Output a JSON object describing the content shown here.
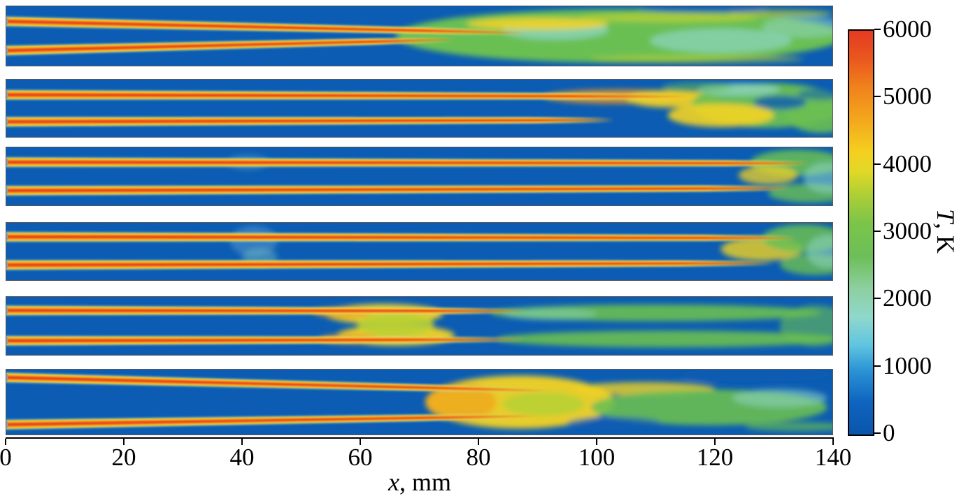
{
  "figure": {
    "xlabel_var": "x",
    "xlabel_rest": ", mm",
    "cbar_var": "T",
    "cbar_rest": ", K"
  },
  "chart_data": {
    "type": "heatmap",
    "title": "",
    "subtitle": "",
    "xlabel": "x, mm",
    "xlim": [
      0,
      140
    ],
    "x_ticks": [
      0,
      20,
      40,
      60,
      80,
      100,
      120,
      140
    ],
    "n_panels": 6,
    "colorbar": {
      "label": "T, K",
      "range_K": [
        0,
        6000
      ],
      "ticks": [
        6000,
        5000,
        4000,
        3000,
        2000,
        1000,
        0
      ],
      "colormap": "jet",
      "stops": [
        {
          "pos": 0,
          "color": "#0b55ab"
        },
        {
          "pos": 0.08,
          "color": "#0e64bf"
        },
        {
          "pos": 0.16,
          "color": "#2b94d6"
        },
        {
          "pos": 0.22,
          "color": "#5fc4e0"
        },
        {
          "pos": 0.29,
          "color": "#8fd8cc"
        },
        {
          "pos": 0.36,
          "color": "#8ed0a2"
        },
        {
          "pos": 0.44,
          "color": "#6cbf58"
        },
        {
          "pos": 0.52,
          "color": "#79c44a"
        },
        {
          "pos": 0.59,
          "color": "#abce36"
        },
        {
          "pos": 0.65,
          "color": "#e0d827"
        },
        {
          "pos": 0.7,
          "color": "#f5cf20"
        },
        {
          "pos": 0.78,
          "color": "#f4a71d"
        },
        {
          "pos": 0.86,
          "color": "#f0821c"
        },
        {
          "pos": 0.93,
          "color": "#ea571e"
        },
        {
          "pos": 1,
          "color": "#e53a22"
        }
      ]
    },
    "palette": {
      "background": "#0b5cb2",
      "streak_core": "#e8401f",
      "streak_mid": "#f5901d",
      "streak_glow": "#f6d321",
      "green": "#6abf52",
      "yellow_green": "#b8d034",
      "teal": "#8fd6c4",
      "yellow": "#f3d322",
      "orange": "#f29a1c",
      "light_blue": "#5d9bcf",
      "wall_gray": "#999999",
      "axis_black": "#000000"
    },
    "background_temperature_K": 300,
    "streak_temperature_K": 4800,
    "combustion_temperature_K": 2800,
    "panels": [
      {
        "name": "panel-1",
        "combustion_onset_mm": 67,
        "streaks": [
          {
            "y0": 0.26,
            "y1": 0.45,
            "x_fade": 70,
            "x_end": 88
          },
          {
            "y0": 0.74,
            "y1": 0.56,
            "x_fade": 62,
            "x_end": 76
          }
        ],
        "blobs": [
          {
            "x": 104,
            "y": 0.5,
            "rx": 38,
            "ry": 0.44,
            "color": "green",
            "opacity": 1
          },
          {
            "x": 78,
            "y": 0.5,
            "rx": 8,
            "ry": 0.3,
            "color": "green",
            "opacity": 0.8
          },
          {
            "x": 93,
            "y": 0.4,
            "rx": 9,
            "ry": 0.16,
            "color": "teal",
            "opacity": 0.75
          },
          {
            "x": 121,
            "y": 0.58,
            "rx": 12,
            "ry": 0.2,
            "color": "teal",
            "opacity": 0.7
          },
          {
            "x": 135,
            "y": 0.35,
            "rx": 7,
            "ry": 0.18,
            "color": "teal",
            "opacity": 0.55
          },
          {
            "x": 90,
            "y": 0.3,
            "rx": 12,
            "ry": 0.1,
            "color": "yellow",
            "opacity": 0.85
          },
          {
            "x": 112,
            "y": 0.2,
            "rx": 15,
            "ry": 0.07,
            "color": "yellow_green",
            "opacity": 0.8
          },
          {
            "x": 131,
            "y": 0.13,
            "rx": 9,
            "ry": 0.06,
            "color": "yellow_green",
            "opacity": 0.7
          },
          {
            "x": 117,
            "y": 0.88,
            "rx": 18,
            "ry": 0.07,
            "color": "yellow_green",
            "opacity": 0.55
          },
          {
            "x": 118,
            "y": 0.05,
            "rx": 11,
            "ry": 0.06,
            "color": "background",
            "opacity": 0.95
          }
        ]
      },
      {
        "name": "panel-2",
        "combustion_onset_mm": 110,
        "streaks": [
          {
            "y0": 0.27,
            "y1": 0.3,
            "x_fade": 95,
            "x_end": 116
          },
          {
            "y0": 0.73,
            "y1": 0.7,
            "x_fade": 90,
            "x_end": 103
          }
        ],
        "blobs": [
          {
            "x": 104,
            "y": 0.3,
            "rx": 13,
            "ry": 0.12,
            "color": "orange",
            "opacity": 0.85
          },
          {
            "x": 113,
            "y": 0.34,
            "rx": 8,
            "ry": 0.15,
            "color": "yellow",
            "opacity": 0.9
          },
          {
            "x": 129,
            "y": 0.45,
            "rx": 13,
            "ry": 0.38,
            "color": "green",
            "opacity": 0.95
          },
          {
            "x": 138,
            "y": 0.62,
            "rx": 6,
            "ry": 0.3,
            "color": "green",
            "opacity": 0.9
          },
          {
            "x": 121,
            "y": 0.62,
            "rx": 9,
            "ry": 0.2,
            "color": "yellow",
            "opacity": 0.9
          },
          {
            "x": 124,
            "y": 0.18,
            "rx": 7,
            "ry": 0.11,
            "color": "teal",
            "opacity": 0.75
          },
          {
            "x": 131,
            "y": 0.4,
            "rx": 4.5,
            "ry": 0.12,
            "color": "background",
            "opacity": 0.8
          },
          {
            "x": 138,
            "y": 0.26,
            "rx": 4,
            "ry": 0.1,
            "color": "background",
            "opacity": 0.55
          },
          {
            "x": 117,
            "y": 0.14,
            "rx": 6,
            "ry": 0.09,
            "color": "green",
            "opacity": 0.5
          }
        ]
      },
      {
        "name": "panel-3",
        "combustion_onset_mm": 126,
        "streaks": [
          {
            "y0": 0.26,
            "y1": 0.28,
            "x_fade": 122,
            "x_end": 136
          },
          {
            "y0": 0.74,
            "y1": 0.7,
            "x_fade": 118,
            "x_end": 133
          }
        ],
        "blobs": [
          {
            "x": 41,
            "y": 0.26,
            "rx": 3.5,
            "ry": 0.13,
            "color": "light_blue",
            "opacity": 0.45
          },
          {
            "x": 134,
            "y": 0.27,
            "rx": 8,
            "ry": 0.22,
            "color": "green",
            "opacity": 0.85
          },
          {
            "x": 129,
            "y": 0.48,
            "rx": 5,
            "ry": 0.16,
            "color": "yellow",
            "opacity": 0.75
          },
          {
            "x": 136,
            "y": 0.78,
            "rx": 7,
            "ry": 0.16,
            "color": "green",
            "opacity": 0.8
          },
          {
            "x": 139,
            "y": 0.52,
            "rx": 4,
            "ry": 0.26,
            "color": "teal",
            "opacity": 0.55
          }
        ]
      },
      {
        "name": "panel-4",
        "combustion_onset_mm": 125,
        "streaks": [
          {
            "y0": 0.25,
            "y1": 0.27,
            "x_fade": 118,
            "x_end": 134
          },
          {
            "y0": 0.73,
            "y1": 0.7,
            "x_fade": 114,
            "x_end": 130
          }
        ],
        "blobs": [
          {
            "x": 42,
            "y": 0.32,
            "rx": 4,
            "ry": 0.26,
            "color": "light_blue",
            "opacity": 0.5
          },
          {
            "x": 43,
            "y": 0.6,
            "rx": 3,
            "ry": 0.15,
            "color": "teal",
            "opacity": 0.35
          },
          {
            "x": 128,
            "y": 0.46,
            "rx": 7,
            "ry": 0.2,
            "color": "yellow",
            "opacity": 0.8
          },
          {
            "x": 135,
            "y": 0.28,
            "rx": 7,
            "ry": 0.24,
            "color": "green",
            "opacity": 0.85
          },
          {
            "x": 137,
            "y": 0.72,
            "rx": 6,
            "ry": 0.18,
            "color": "green",
            "opacity": 0.8
          },
          {
            "x": 139,
            "y": 0.5,
            "rx": 3.5,
            "ry": 0.28,
            "color": "teal",
            "opacity": 0.55
          }
        ]
      },
      {
        "name": "panel-5",
        "combustion_onset_mm": 85,
        "flame_kernel_mm": 64,
        "streaks": [
          {
            "y0": 0.24,
            "y1": 0.25,
            "x_fade": 72,
            "x_end": 88
          },
          {
            "y0": 0.75,
            "y1": 0.73,
            "x_fade": 68,
            "x_end": 88
          }
        ],
        "blobs": [
          {
            "x": 64,
            "y": 0.3,
            "rx": 10,
            "ry": 0.17,
            "color": "yellow",
            "opacity": 0.95
          },
          {
            "x": 66,
            "y": 0.66,
            "rx": 10,
            "ry": 0.17,
            "color": "yellow",
            "opacity": 0.95
          },
          {
            "x": 66,
            "y": 0.48,
            "rx": 6.5,
            "ry": 0.2,
            "color": "yellow_green",
            "opacity": 0.9
          },
          {
            "x": 57,
            "y": 0.27,
            "rx": 5,
            "ry": 0.08,
            "color": "orange",
            "opacity": 0.85
          },
          {
            "x": 58,
            "y": 0.72,
            "rx": 5,
            "ry": 0.08,
            "color": "orange",
            "opacity": 0.85
          },
          {
            "x": 110,
            "y": 0.28,
            "rx": 28,
            "ry": 0.14,
            "color": "green",
            "opacity": 0.9
          },
          {
            "x": 112,
            "y": 0.72,
            "rx": 29,
            "ry": 0.14,
            "color": "green",
            "opacity": 0.9
          },
          {
            "x": 137,
            "y": 0.5,
            "rx": 6,
            "ry": 0.35,
            "color": "green",
            "opacity": 0.6
          },
          {
            "x": 92,
            "y": 0.3,
            "rx": 8,
            "ry": 0.1,
            "color": "teal",
            "opacity": 0.45
          }
        ]
      },
      {
        "name": "panel-6",
        "combustion_onset_mm": 72,
        "flame_kernel_mm": 87,
        "streaks": [
          {
            "y0": 0.13,
            "y1": 0.33,
            "x_fade": 72,
            "x_end": 92
          },
          {
            "y0": 0.84,
            "y1": 0.71,
            "x_fade": 70,
            "x_end": 90
          }
        ],
        "blobs": [
          {
            "x": 87,
            "y": 0.5,
            "rx": 16,
            "ry": 0.4,
            "color": "yellow",
            "opacity": 0.95
          },
          {
            "x": 77,
            "y": 0.5,
            "rx": 6,
            "ry": 0.28,
            "color": "orange",
            "opacity": 0.6
          },
          {
            "x": 91,
            "y": 0.53,
            "rx": 7,
            "ry": 0.18,
            "color": "yellow_green",
            "opacity": 0.9
          },
          {
            "x": 108,
            "y": 0.3,
            "rx": 12,
            "ry": 0.1,
            "color": "yellow",
            "opacity": 0.8
          },
          {
            "x": 119,
            "y": 0.58,
            "rx": 20,
            "ry": 0.27,
            "color": "green",
            "opacity": 0.9
          },
          {
            "x": 131,
            "y": 0.44,
            "rx": 8,
            "ry": 0.14,
            "color": "teal",
            "opacity": 0.55
          },
          {
            "x": 134,
            "y": 0.87,
            "rx": 9,
            "ry": 0.07,
            "color": "green",
            "opacity": 0.65
          },
          {
            "x": 127,
            "y": 0.09,
            "rx": 13,
            "ry": 0.1,
            "color": "background",
            "opacity": 1
          },
          {
            "x": 103,
            "y": 0.82,
            "rx": 8,
            "ry": 0.1,
            "color": "background",
            "opacity": 0.6
          }
        ]
      }
    ]
  }
}
